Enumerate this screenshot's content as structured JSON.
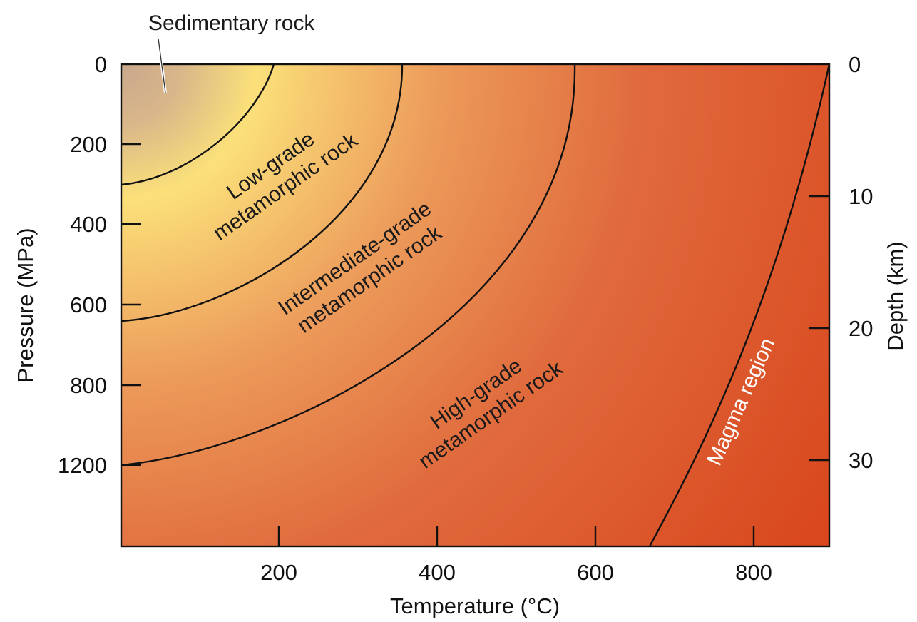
{
  "colors": {
    "sedimentary": "#c9a88c",
    "low_grade": "#fbe07a",
    "intermediate": "#ec9a5a",
    "high_grade": "#e06a3c",
    "magma": "#d9471e"
  },
  "axes": {
    "left": {
      "title": "Pressure (MPa)",
      "ticks": [
        "0",
        "200",
        "400",
        "600",
        "800",
        "1200"
      ]
    },
    "right": {
      "title": "Depth (km)",
      "ticks": [
        "0",
        "10",
        "20",
        "30"
      ]
    },
    "bottom": {
      "title": "Temperature (°C)",
      "ticks": [
        "200",
        "400",
        "600",
        "800"
      ]
    }
  },
  "regions": {
    "sedimentary": "Sedimentary rock",
    "low_grade_line1": "Low-grade",
    "low_grade_line2": "metamorphic rock",
    "intermediate_line1": "Intermediate-grade",
    "intermediate_line2": "metamorphic rock",
    "high_grade_line1": "High-grade",
    "high_grade_line2": "metamorphic rock",
    "magma": "Magma region"
  }
}
